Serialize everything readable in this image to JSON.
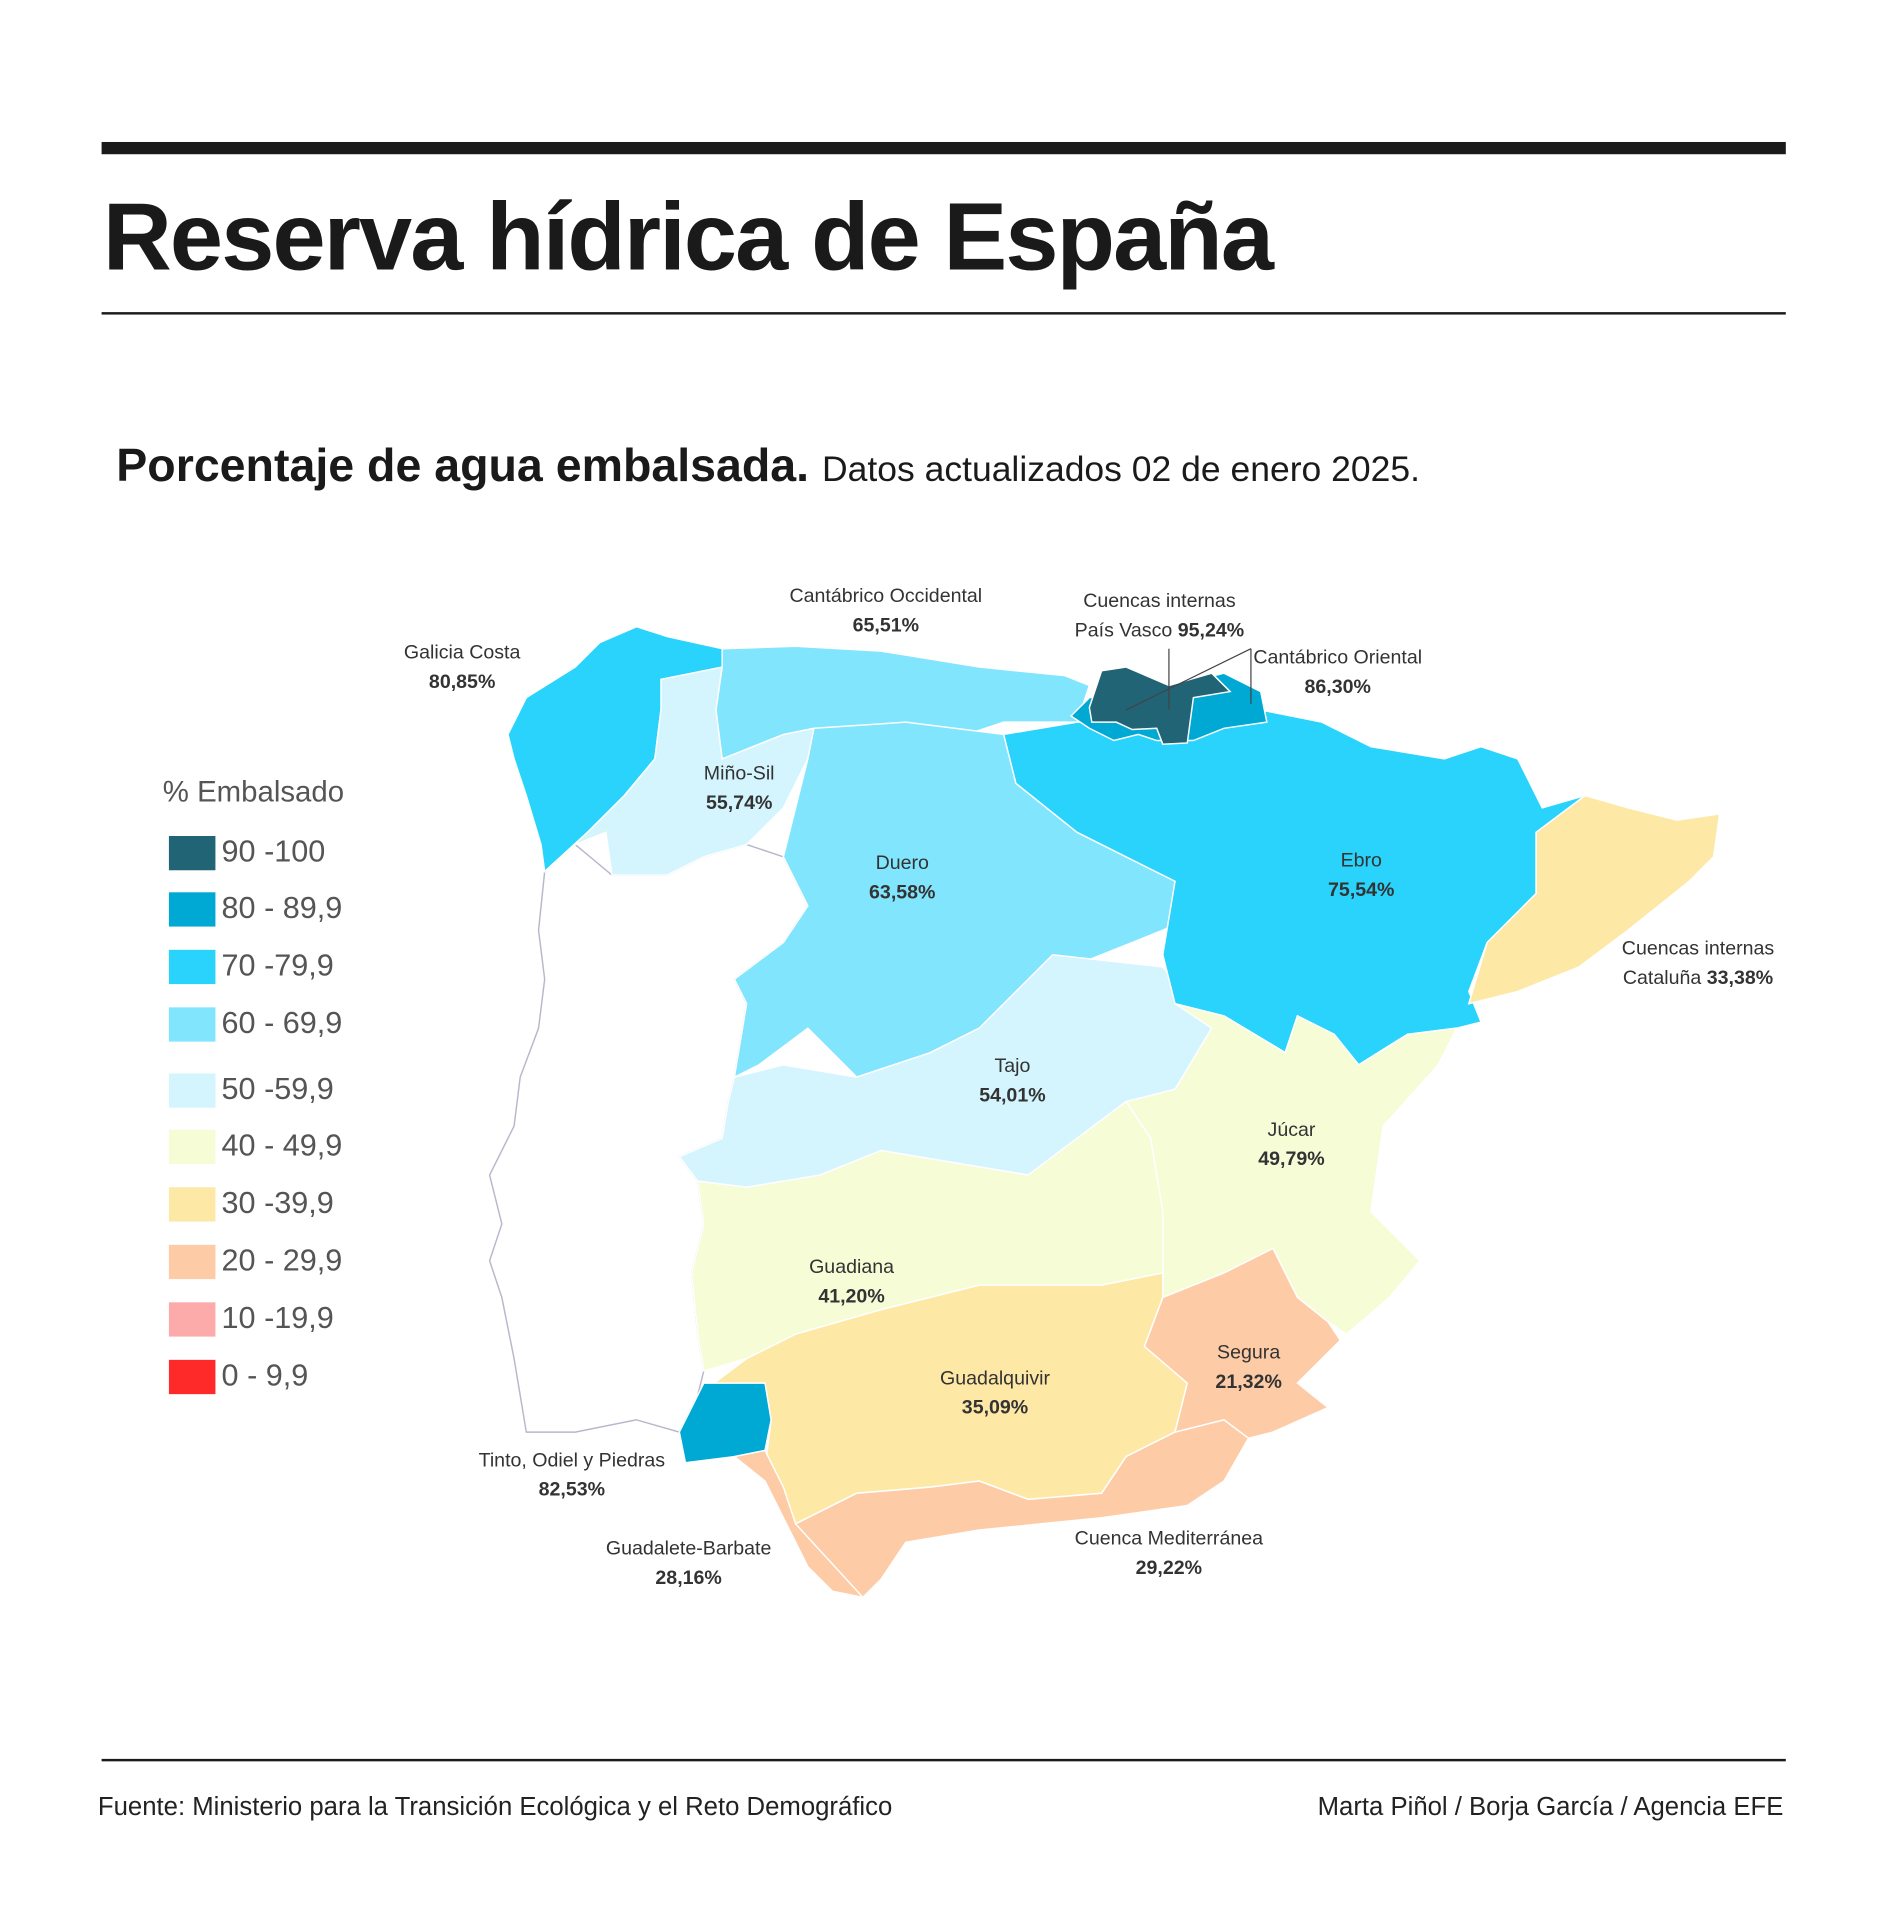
{
  "title": "Reserva hídrica de España",
  "subtitle": {
    "bold": "Porcentaje de agua embalsada.",
    "normal": "Datos actualizados 02 de enero 2025."
  },
  "legend": {
    "title": "% Embalsado",
    "items": [
      {
        "label": "90 -100",
        "color": "#216475"
      },
      {
        "label": "80 - 89,9",
        "color": "#00a9d4"
      },
      {
        "label": "70 -79,9",
        "color": "#29d3fb"
      },
      {
        "label": "60 - 69,9",
        "color": "#80e5fd"
      },
      {
        "label": "50 -59,9",
        "color": "#d4f5fd"
      },
      {
        "label": "40 - 49,9",
        "color": "#f5fcd6"
      },
      {
        "label": "30 -39,9",
        "color": "#fde8a6"
      },
      {
        "label": "20 - 29,9",
        "color": "#fdcba6"
      },
      {
        "label": "10 -19,9",
        "color": "#fdaaaa"
      },
      {
        "label": "0 - 9,9",
        "color": "#fe2a2a"
      }
    ]
  },
  "basins": {
    "galicia": {
      "name": "Galicia Costa",
      "value": "80,85%"
    },
    "cantabrico_occ": {
      "name": "Cantábrico Occidental",
      "value": "65,51%"
    },
    "pais_vasco": {
      "name1": "Cuencas internas",
      "name2": "País Vasco",
      "value": "95,24%"
    },
    "cantabrico_or": {
      "name": "Cantábrico Oriental",
      "value": "86,30%"
    },
    "mino": {
      "name": "Miño-Sil",
      "value": "55,74%"
    },
    "duero": {
      "name": "Duero",
      "value": "63,58%"
    },
    "ebro": {
      "name": "Ebro",
      "value": "75,54%"
    },
    "cataluna": {
      "name1": "Cuencas internas",
      "name2": "Cataluña",
      "value": "33,38%"
    },
    "tajo": {
      "name": "Tajo",
      "value": "54,01%"
    },
    "jucar": {
      "name": "Júcar",
      "value": "49,79%"
    },
    "guadiana": {
      "name": "Guadiana",
      "value": "41,20%"
    },
    "guadalquivir": {
      "name": "Guadalquivir",
      "value": "35,09%"
    },
    "segura": {
      "name": "Segura",
      "value": "21,32%"
    },
    "tinto": {
      "name": "Tinto, Odiel y Piedras",
      "value": "82,53%"
    },
    "guadalete": {
      "name": "Guadalete-Barbate",
      "value": "28,16%"
    },
    "mediterranea": {
      "name": "Cuenca Mediterránea",
      "value": "29,22%"
    }
  },
  "footer": {
    "source": "Fuente: Ministerio para la Transición Ecológica y el Reto Demográfico",
    "credit": "Marta Piñol / Borja García / Agencia EFE"
  }
}
